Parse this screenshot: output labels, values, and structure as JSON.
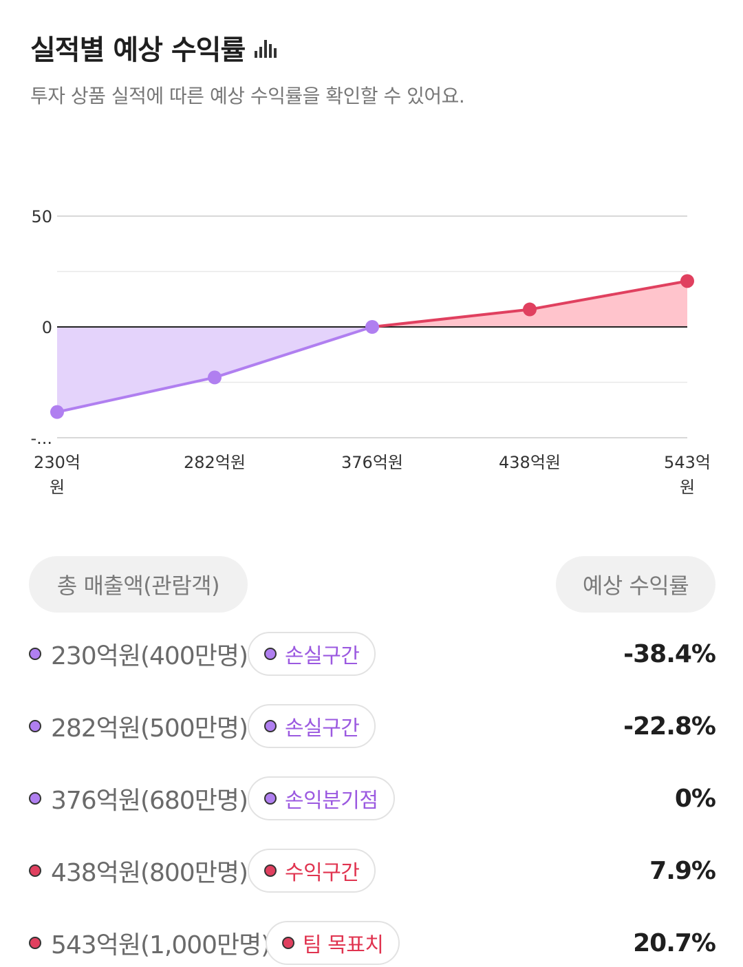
{
  "header": {
    "title": "실적별 예상 수익률",
    "subtitle": "투자 상품 실적에 따른 예상 수익률을 확인할 수 있어요."
  },
  "colors": {
    "loss": "#b07ff0",
    "loss_fill": "#e4d3fb",
    "profit": "#e0405f",
    "profit_fill": "#ffc4cc",
    "loss_text": "#9b59e0",
    "profit_text": "#e0334f"
  },
  "chart_data": {
    "type": "area",
    "categories": [
      "230억원",
      "282억원",
      "376억원",
      "438억원",
      "543억원"
    ],
    "values": [
      -38.4,
      -22.8,
      0,
      7.9,
      20.7
    ],
    "y_ticks": [
      "50",
      "0",
      "-..."
    ],
    "ylim": [
      -50,
      50
    ],
    "grid": true
  },
  "table": {
    "col_left": "총 매출액(관람객)",
    "col_right": "예상 수익률",
    "rows": [
      {
        "label": "230억원(400만명)",
        "badge": "손실구간",
        "value": "-38.4%",
        "kind": "loss"
      },
      {
        "label": "282억원(500만명)",
        "badge": "손실구간",
        "value": "-22.8%",
        "kind": "loss"
      },
      {
        "label": "376억원(680만명)",
        "badge": "손익분기점",
        "value": "0%",
        "kind": "loss"
      },
      {
        "label": "438억원(800만명)",
        "badge": "수익구간",
        "value": "7.9%",
        "kind": "profit"
      },
      {
        "label": "543억원(1,000만명)",
        "badge": "팀 목표치",
        "value": "20.7%",
        "kind": "profit"
      }
    ]
  }
}
